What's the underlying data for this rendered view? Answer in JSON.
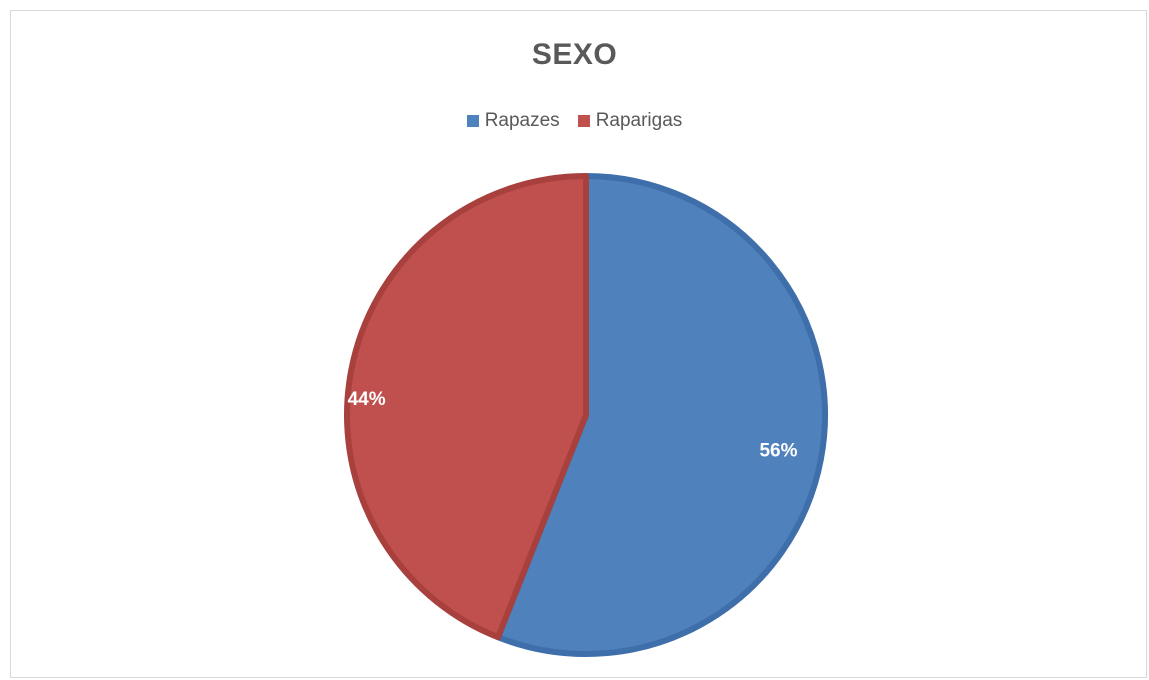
{
  "chart_data": {
    "type": "pie",
    "title": "SEXO",
    "legend_position": "top",
    "categories": [
      "Rapazes",
      "Raparigas"
    ],
    "values": [
      56,
      44
    ],
    "data_labels": [
      "56%",
      "44%"
    ],
    "colors": [
      "#4F81BD",
      "#C0504D"
    ],
    "edge_colors": [
      "#3F6FAA",
      "#A8403D"
    ]
  }
}
